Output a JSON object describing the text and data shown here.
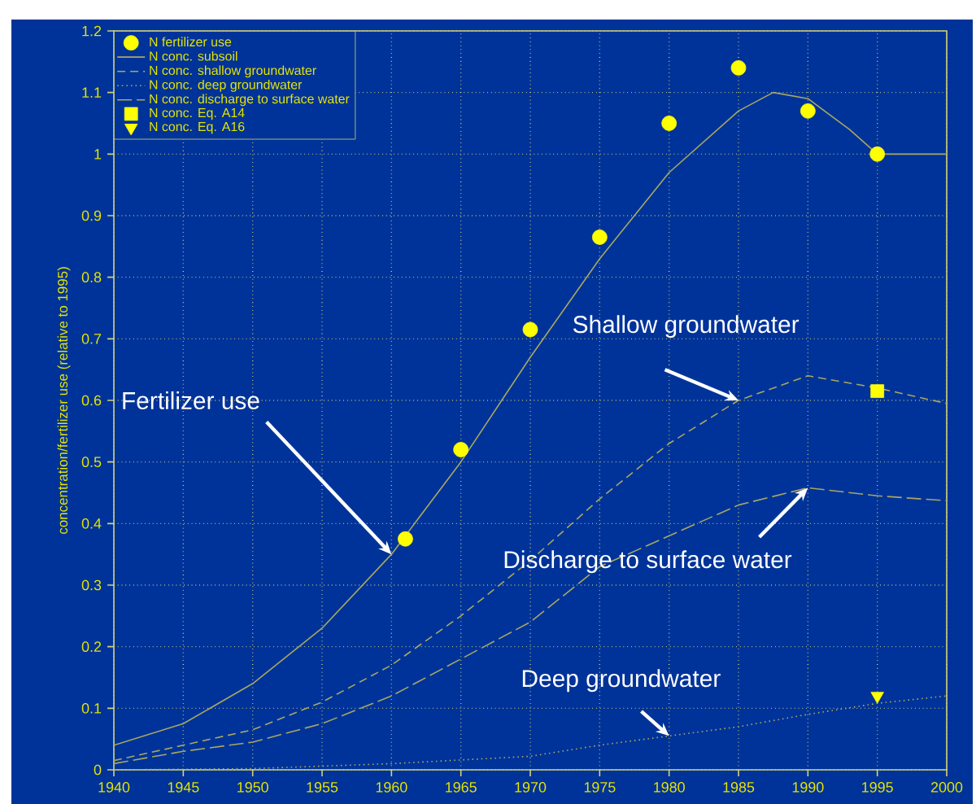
{
  "chart_data": {
    "type": "line",
    "ylabel": "concentration/fertilizer use (relative to 1995)",
    "xlim": [
      1940,
      2000
    ],
    "ylim": [
      0,
      1.2
    ],
    "xticks": [
      1940,
      1945,
      1950,
      1955,
      1960,
      1965,
      1970,
      1975,
      1980,
      1985,
      1990,
      1995,
      2000
    ],
    "yticks": [
      0,
      {
        "value": 0.1,
        "label": "0.1"
      },
      {
        "value": 0.2,
        "label": "0.2"
      },
      {
        "value": 0.3,
        "label": "0.3"
      },
      {
        "value": 0.4,
        "label": "0.4"
      },
      {
        "value": 0.5,
        "label": "0.5"
      },
      {
        "value": 0.6,
        "label": "0.6"
      },
      {
        "value": 0.7,
        "label": "0.7"
      },
      {
        "value": 0.8,
        "label": "0.8"
      },
      {
        "value": 0.9,
        "label": "0.9"
      },
      1,
      {
        "value": 1.1,
        "label": "1.1"
      },
      {
        "value": 1.2,
        "label": "1.2"
      }
    ],
    "grid": true,
    "legend": "top left",
    "series": [
      {
        "name": "N fertilizer use",
        "type": "scatter",
        "marker": "circle",
        "color": "#ffff00",
        "x": [
          1961,
          1965,
          1970,
          1975,
          1980,
          1985,
          1990,
          1995
        ],
        "values": [
          0.375,
          0.52,
          0.715,
          0.865,
          1.05,
          1.14,
          1.07,
          1.0
        ]
      },
      {
        "name": "N conc. subsoil",
        "line_style": "solid",
        "color": "#a8a860",
        "x": [
          1940,
          1945,
          1950,
          1955,
          1960,
          1965,
          1970,
          1975,
          1980,
          1985,
          1987.5,
          1990,
          1993,
          1995,
          2000
        ],
        "values": [
          0.04,
          0.075,
          0.14,
          0.23,
          0.35,
          0.5,
          0.67,
          0.83,
          0.97,
          1.07,
          1.1,
          1.09,
          1.04,
          1.0,
          1.0
        ]
      },
      {
        "name": "N conc. shallow groundwater",
        "line_style": "dashed",
        "color": "#a8a860",
        "x": [
          1940,
          1945,
          1950,
          1955,
          1960,
          1965,
          1970,
          1975,
          1980,
          1985,
          1990,
          1995,
          2000
        ],
        "values": [
          0.015,
          0.04,
          0.065,
          0.11,
          0.17,
          0.25,
          0.34,
          0.44,
          0.53,
          0.6,
          0.64,
          0.62,
          0.595
        ]
      },
      {
        "name": "N conc. deep groundwater",
        "line_style": "dotted",
        "color": "#a8a860",
        "x": [
          1940,
          1950,
          1960,
          1965,
          1970,
          1975,
          1980,
          1985,
          1990,
          1995,
          2000
        ],
        "values": [
          0.0,
          0.002,
          0.01,
          0.016,
          0.022,
          0.04,
          0.055,
          0.07,
          0.09,
          0.108,
          0.12
        ]
      },
      {
        "name": "N conc. discharge to surface water",
        "line_style": "dashed",
        "color": "#a8a860",
        "x": [
          1940,
          1945,
          1950,
          1955,
          1960,
          1965,
          1970,
          1975,
          1980,
          1985,
          1990,
          1995,
          2000
        ],
        "values": [
          0.01,
          0.03,
          0.045,
          0.075,
          0.12,
          0.18,
          0.24,
          0.33,
          0.38,
          0.43,
          0.458,
          0.445,
          0.437
        ]
      },
      {
        "name": "N conc. Eq. A14",
        "type": "scatter",
        "marker": "square",
        "color": "#ffff00",
        "x": [
          1995
        ],
        "values": [
          0.615
        ]
      },
      {
        "name": "N conc. Eq. A16",
        "type": "scatter",
        "marker": "triangle",
        "color": "#ffff00",
        "x": [
          1995
        ],
        "values": [
          0.12
        ]
      }
    ],
    "annotations": [
      {
        "text": "Fertilizer use",
        "x": 1960,
        "y": 0.35
      },
      {
        "text": "Shallow groundwater",
        "x": 1985,
        "y": 0.6
      },
      {
        "text": "Discharge to surface water",
        "x": 1990,
        "y": 0.458
      },
      {
        "text": "Deep groundwater",
        "x": 1980,
        "y": 0.055
      }
    ]
  }
}
